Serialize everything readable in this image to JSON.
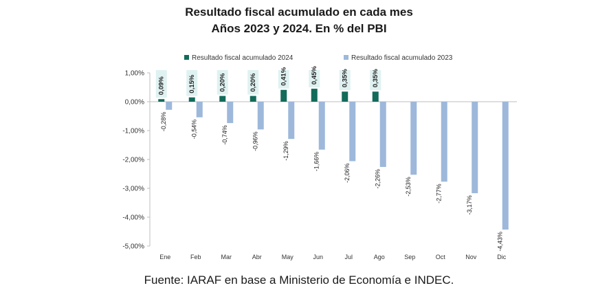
{
  "title_line1": "Resultado fiscal acumulado en cada mes",
  "title_line2": "Años 2023 y 2024. En % del PBI",
  "source": "Fuente: IARAF en base a Ministerio de Economía e INDEC.",
  "colors": {
    "series2024": "#136b5a",
    "series2023": "#9db8da",
    "label_bg": "#dff2f1",
    "axis": "#bdbdbd"
  },
  "chart_data": {
    "type": "bar",
    "title": "Resultado fiscal acumulado en cada mes",
    "subtitle": "Años 2023 y 2024. En % del PBI",
    "xlabel": "",
    "ylabel": "",
    "ylim": [
      -5,
      1
    ],
    "grid": false,
    "legend_position": "top",
    "categories": [
      "Ene",
      "Feb",
      "Mar",
      "Abr",
      "May",
      "Jun",
      "Jul",
      "Ago",
      "Sep",
      "Oct",
      "Nov",
      "Dic"
    ],
    "y_ticks": [
      1,
      0,
      -1,
      -2,
      -3,
      -4,
      -5
    ],
    "y_tick_labels": [
      "1,00%",
      "0,00%",
      "-1,00%",
      "-2,00%",
      "-3,00%",
      "-4,00%",
      "-5,00%"
    ],
    "series": [
      {
        "name": "Resultado fiscal acumulado 2024",
        "values": [
          0.09,
          0.15,
          0.2,
          0.2,
          0.41,
          0.45,
          0.35,
          0.35,
          null,
          null,
          null,
          null
        ],
        "labels": [
          "0,09%",
          "0,15%",
          "0,20%",
          "0,20%",
          "0,41%",
          "0,45%",
          "0,35%",
          "0,35%",
          "",
          "",
          "",
          ""
        ]
      },
      {
        "name": "Resultado fiscal acumulado 2023",
        "values": [
          -0.28,
          -0.54,
          -0.74,
          -0.96,
          -1.29,
          -1.66,
          -2.06,
          -2.26,
          -2.53,
          -2.77,
          -3.17,
          -4.43
        ],
        "labels": [
          "-0,28%",
          "-0,54%",
          "-0,74%",
          "-0,96%",
          "-1,29%",
          "-1,66%",
          "-2,06%",
          "-2,26%",
          "-2,53%",
          "-2,77%",
          "-3,17%",
          "-4,43%"
        ]
      }
    ]
  }
}
